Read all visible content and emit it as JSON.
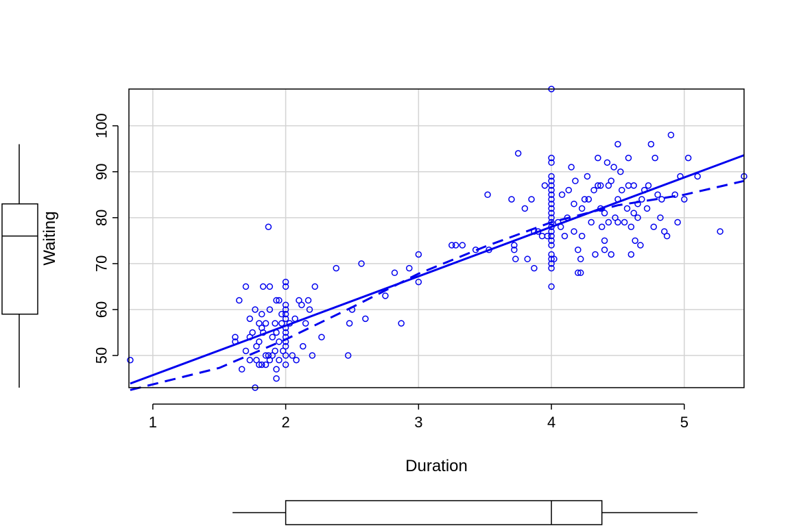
{
  "chart_data": {
    "type": "scatter",
    "title": "",
    "xlabel": "Duration",
    "ylabel": "Waiting",
    "xlim": [
      0.82,
      5.45
    ],
    "ylim": [
      43,
      108
    ],
    "xticks": [
      1,
      2,
      3,
      4,
      5
    ],
    "yticks": [
      50,
      60,
      70,
      80,
      90,
      100
    ],
    "grid": true,
    "legend": "none",
    "colors": {
      "points": "#0000EE",
      "lines": "#0000EE",
      "grid": "#D3D3D3",
      "axes": "#000000"
    },
    "series": [
      {
        "kind": "points",
        "points": [
          [
            0.83,
            49
          ],
          [
            1.62,
            54
          ],
          [
            1.62,
            53
          ],
          [
            1.65,
            62
          ],
          [
            1.67,
            47
          ],
          [
            1.7,
            65
          ],
          [
            1.7,
            51
          ],
          [
            1.73,
            49
          ],
          [
            1.73,
            58
          ],
          [
            1.73,
            54
          ],
          [
            1.75,
            55
          ],
          [
            1.77,
            43
          ],
          [
            1.77,
            60
          ],
          [
            1.78,
            52
          ],
          [
            1.78,
            49
          ],
          [
            1.8,
            57
          ],
          [
            1.8,
            53
          ],
          [
            1.8,
            48
          ],
          [
            1.82,
            59
          ],
          [
            1.82,
            56
          ],
          [
            1.82,
            48
          ],
          [
            1.83,
            65
          ],
          [
            1.83,
            55
          ],
          [
            1.85,
            57
          ],
          [
            1.85,
            50
          ],
          [
            1.85,
            48
          ],
          [
            1.87,
            78
          ],
          [
            1.87,
            50
          ],
          [
            1.88,
            65
          ],
          [
            1.88,
            60
          ],
          [
            1.88,
            49
          ],
          [
            1.9,
            54
          ],
          [
            1.9,
            50
          ],
          [
            1.92,
            57
          ],
          [
            1.92,
            51
          ],
          [
            1.93,
            62
          ],
          [
            1.93,
            55
          ],
          [
            1.93,
            47
          ],
          [
            1.93,
            45
          ],
          [
            1.95,
            62
          ],
          [
            1.95,
            53
          ],
          [
            1.95,
            49
          ],
          [
            1.97,
            59
          ],
          [
            1.97,
            57
          ],
          [
            1.98,
            51
          ],
          [
            2.0,
            66
          ],
          [
            2.0,
            65
          ],
          [
            2.0,
            61
          ],
          [
            2.0,
            60
          ],
          [
            2.0,
            59
          ],
          [
            2.0,
            58
          ],
          [
            2.0,
            56
          ],
          [
            2.0,
            55
          ],
          [
            2.0,
            54
          ],
          [
            2.0,
            53
          ],
          [
            2.0,
            52
          ],
          [
            2.0,
            50
          ],
          [
            2.0,
            48
          ],
          [
            2.03,
            57
          ],
          [
            2.05,
            50
          ],
          [
            2.07,
            58
          ],
          [
            2.08,
            49
          ],
          [
            2.1,
            62
          ],
          [
            2.12,
            61
          ],
          [
            2.13,
            52
          ],
          [
            2.15,
            57
          ],
          [
            2.17,
            62
          ],
          [
            2.18,
            60
          ],
          [
            2.2,
            50
          ],
          [
            2.22,
            65
          ],
          [
            2.27,
            54
          ],
          [
            2.38,
            69
          ],
          [
            2.47,
            50
          ],
          [
            2.48,
            57
          ],
          [
            2.5,
            60
          ],
          [
            2.57,
            70
          ],
          [
            2.6,
            58
          ],
          [
            2.75,
            63
          ],
          [
            2.82,
            68
          ],
          [
            2.87,
            57
          ],
          [
            2.93,
            69
          ],
          [
            3.0,
            72
          ],
          [
            3.0,
            66
          ],
          [
            3.25,
            74
          ],
          [
            3.28,
            74
          ],
          [
            3.33,
            74
          ],
          [
            3.43,
            73
          ],
          [
            3.52,
            85
          ],
          [
            3.53,
            73
          ],
          [
            3.7,
            84
          ],
          [
            3.72,
            74
          ],
          [
            3.72,
            73
          ],
          [
            3.73,
            71
          ],
          [
            3.75,
            94
          ],
          [
            3.8,
            82
          ],
          [
            3.82,
            71
          ],
          [
            3.85,
            84
          ],
          [
            3.87,
            77
          ],
          [
            3.87,
            69
          ],
          [
            3.9,
            77
          ],
          [
            3.93,
            76
          ],
          [
            3.95,
            87
          ],
          [
            3.97,
            76
          ],
          [
            4.0,
            108
          ],
          [
            4.0,
            93
          ],
          [
            4.0,
            92
          ],
          [
            4.0,
            89
          ],
          [
            4.0,
            88
          ],
          [
            4.0,
            87
          ],
          [
            4.0,
            86
          ],
          [
            4.0,
            85
          ],
          [
            4.0,
            84
          ],
          [
            4.0,
            83
          ],
          [
            4.0,
            82
          ],
          [
            4.0,
            81
          ],
          [
            4.0,
            80
          ],
          [
            4.0,
            79
          ],
          [
            4.0,
            78
          ],
          [
            4.0,
            77
          ],
          [
            4.0,
            76
          ],
          [
            4.0,
            75
          ],
          [
            4.0,
            74
          ],
          [
            4.0,
            72
          ],
          [
            4.0,
            71
          ],
          [
            4.0,
            70
          ],
          [
            4.0,
            69
          ],
          [
            4.0,
            65
          ],
          [
            4.02,
            71
          ],
          [
            4.05,
            79
          ],
          [
            4.07,
            78
          ],
          [
            4.08,
            85
          ],
          [
            4.1,
            76
          ],
          [
            4.12,
            80
          ],
          [
            4.13,
            86
          ],
          [
            4.15,
            91
          ],
          [
            4.17,
            83
          ],
          [
            4.17,
            77
          ],
          [
            4.18,
            88
          ],
          [
            4.2,
            73
          ],
          [
            4.2,
            68
          ],
          [
            4.22,
            68
          ],
          [
            4.22,
            71
          ],
          [
            4.23,
            82
          ],
          [
            4.23,
            76
          ],
          [
            4.25,
            84
          ],
          [
            4.27,
            89
          ],
          [
            4.28,
            84
          ],
          [
            4.3,
            79
          ],
          [
            4.32,
            86
          ],
          [
            4.33,
            72
          ],
          [
            4.35,
            87
          ],
          [
            4.35,
            93
          ],
          [
            4.37,
            87
          ],
          [
            4.37,
            82
          ],
          [
            4.38,
            78
          ],
          [
            4.4,
            81
          ],
          [
            4.4,
            75
          ],
          [
            4.4,
            73
          ],
          [
            4.42,
            92
          ],
          [
            4.43,
            87
          ],
          [
            4.43,
            79
          ],
          [
            4.45,
            88
          ],
          [
            4.45,
            72
          ],
          [
            4.47,
            91
          ],
          [
            4.48,
            80
          ],
          [
            4.5,
            96
          ],
          [
            4.5,
            84
          ],
          [
            4.5,
            79
          ],
          [
            4.52,
            90
          ],
          [
            4.53,
            86
          ],
          [
            4.55,
            79
          ],
          [
            4.57,
            82
          ],
          [
            4.58,
            93
          ],
          [
            4.58,
            87
          ],
          [
            4.6,
            72
          ],
          [
            4.6,
            78
          ],
          [
            4.62,
            87
          ],
          [
            4.62,
            81
          ],
          [
            4.63,
            75
          ],
          [
            4.65,
            83
          ],
          [
            4.65,
            80
          ],
          [
            4.67,
            74
          ],
          [
            4.68,
            84
          ],
          [
            4.7,
            86
          ],
          [
            4.72,
            82
          ],
          [
            4.73,
            87
          ],
          [
            4.75,
            96
          ],
          [
            4.77,
            78
          ],
          [
            4.78,
            93
          ],
          [
            4.8,
            85
          ],
          [
            4.82,
            80
          ],
          [
            4.83,
            84
          ],
          [
            4.85,
            77
          ],
          [
            4.87,
            76
          ],
          [
            4.9,
            98
          ],
          [
            4.93,
            85
          ],
          [
            4.95,
            79
          ],
          [
            4.97,
            89
          ],
          [
            5.0,
            84
          ],
          [
            5.03,
            93
          ],
          [
            5.1,
            89
          ],
          [
            5.27,
            77
          ],
          [
            5.45,
            89
          ]
        ]
      },
      {
        "kind": "line",
        "style": "solid",
        "points": [
          [
            0.83,
            43.9
          ],
          [
            5.45,
            93.6
          ]
        ]
      },
      {
        "kind": "line",
        "style": "dashed",
        "points": [
          [
            0.83,
            42.5
          ],
          [
            1.5,
            47.3
          ],
          [
            2.0,
            53.5
          ],
          [
            2.5,
            60.5
          ],
          [
            3.0,
            67.8
          ],
          [
            3.5,
            73.7
          ],
          [
            4.0,
            79.0
          ],
          [
            4.5,
            82.7
          ],
          [
            5.0,
            85.0
          ],
          [
            5.45,
            88.0
          ]
        ]
      }
    ],
    "boxplots": {
      "x": {
        "whisker_low": 1.6,
        "q1": 2.0,
        "median": 4.0,
        "q3": 4.38,
        "whisker_high": 5.1
      },
      "y": {
        "whisker_low": 43,
        "q1": 59,
        "median": 76,
        "q3": 83,
        "whisker_high": 96
      }
    }
  }
}
